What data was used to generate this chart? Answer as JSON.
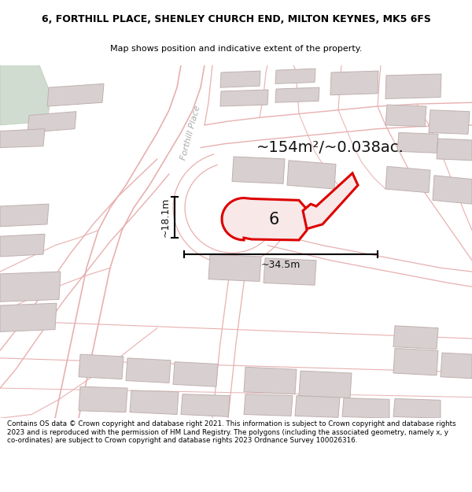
{
  "title_line1": "6, FORTHILL PLACE, SHENLEY CHURCH END, MILTON KEYNES, MK5 6FS",
  "title_line2": "Map shows position and indicative extent of the property.",
  "area_text": "~154m²/~0.038ac.",
  "dim_height": "~18.1m",
  "dim_width": "~34.5m",
  "property_number": "6",
  "footer_text": "Contains OS data © Crown copyright and database right 2021. This information is subject to Crown copyright and database rights 2023 and is reproduced with the permission of HM Land Registry. The polygons (including the associated geometry, namely x, y co-ordinates) are subject to Crown copyright and database rights 2023 Ordnance Survey 100026316.",
  "map_bg": "#f2eeee",
  "bfill": "#d8d0d0",
  "bedge": "#c0b0b0",
  "road_col": "#e8b0b0",
  "prop_fill": "#f8e8e8",
  "prop_edge": "#dd0000",
  "street_label": "Forthill Place",
  "green_fill": "#d8e8d8",
  "green_edge": "#c0c8b8"
}
